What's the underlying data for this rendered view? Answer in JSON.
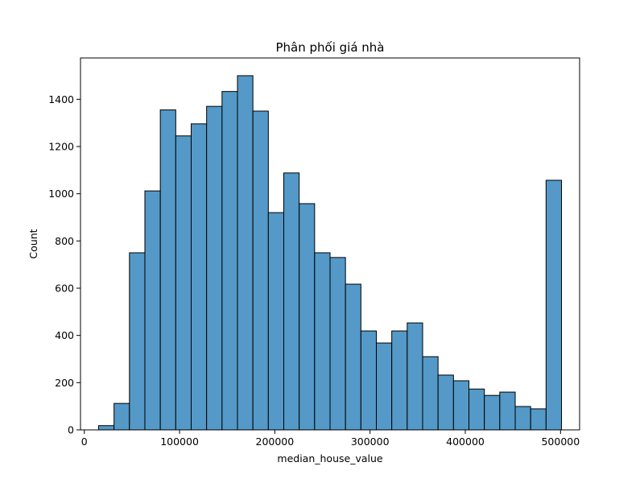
{
  "chart_data": {
    "type": "bar",
    "subtype": "histogram",
    "title": "Phân phối giá nhà",
    "xlabel": "median_house_value",
    "ylabel": "Count",
    "bar_color": "#5499c7",
    "edge_color": "#000000",
    "xlim": [
      -4000,
      520000
    ],
    "ylim": [
      0,
      1575
    ],
    "bin_start": 14999,
    "bin_width": 16200,
    "counts": [
      18,
      112,
      750,
      1012,
      1355,
      1245,
      1296,
      1370,
      1433,
      1500,
      1350,
      920,
      1088,
      958,
      750,
      730,
      617,
      419,
      368,
      419,
      453,
      310,
      232,
      208,
      173,
      146,
      160,
      99,
      89,
      1057
    ],
    "xticks": [
      0,
      100000,
      200000,
      300000,
      400000,
      500000
    ],
    "xtick_labels": [
      "0",
      "100000",
      "200000",
      "300000",
      "400000",
      "500000"
    ],
    "yticks": [
      0,
      200,
      400,
      600,
      800,
      1000,
      1200,
      1400
    ],
    "ytick_labels": [
      "0",
      "200",
      "400",
      "600",
      "800",
      "1000",
      "1200",
      "1400"
    ]
  }
}
